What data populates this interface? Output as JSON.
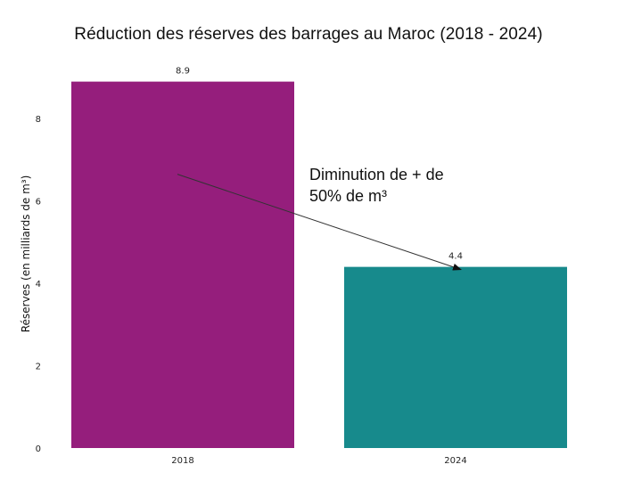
{
  "chart_data": {
    "type": "bar",
    "title": "Réduction des réserves des barrages au Maroc  (2018 - 2024)",
    "xlabel": "",
    "ylabel": "Réserves (en milliards de m³)",
    "categories": [
      "2018",
      "2024"
    ],
    "values": [
      8.9,
      4.4
    ],
    "data_labels": [
      "8.9",
      "4.4"
    ],
    "colors": [
      "#951e7c",
      "#178a8c"
    ],
    "ylim": [
      0,
      9.0
    ],
    "yticks": [
      0,
      2,
      4,
      6,
      8
    ],
    "grid": false,
    "legend": "none",
    "annotation": {
      "lines": [
        "Diminution de + de",
        "50%  de m³"
      ],
      "arrow_from": {
        "category": "2018",
        "value": 6.65
      },
      "arrow_to": {
        "category": "2024",
        "value": 4.4
      }
    }
  }
}
